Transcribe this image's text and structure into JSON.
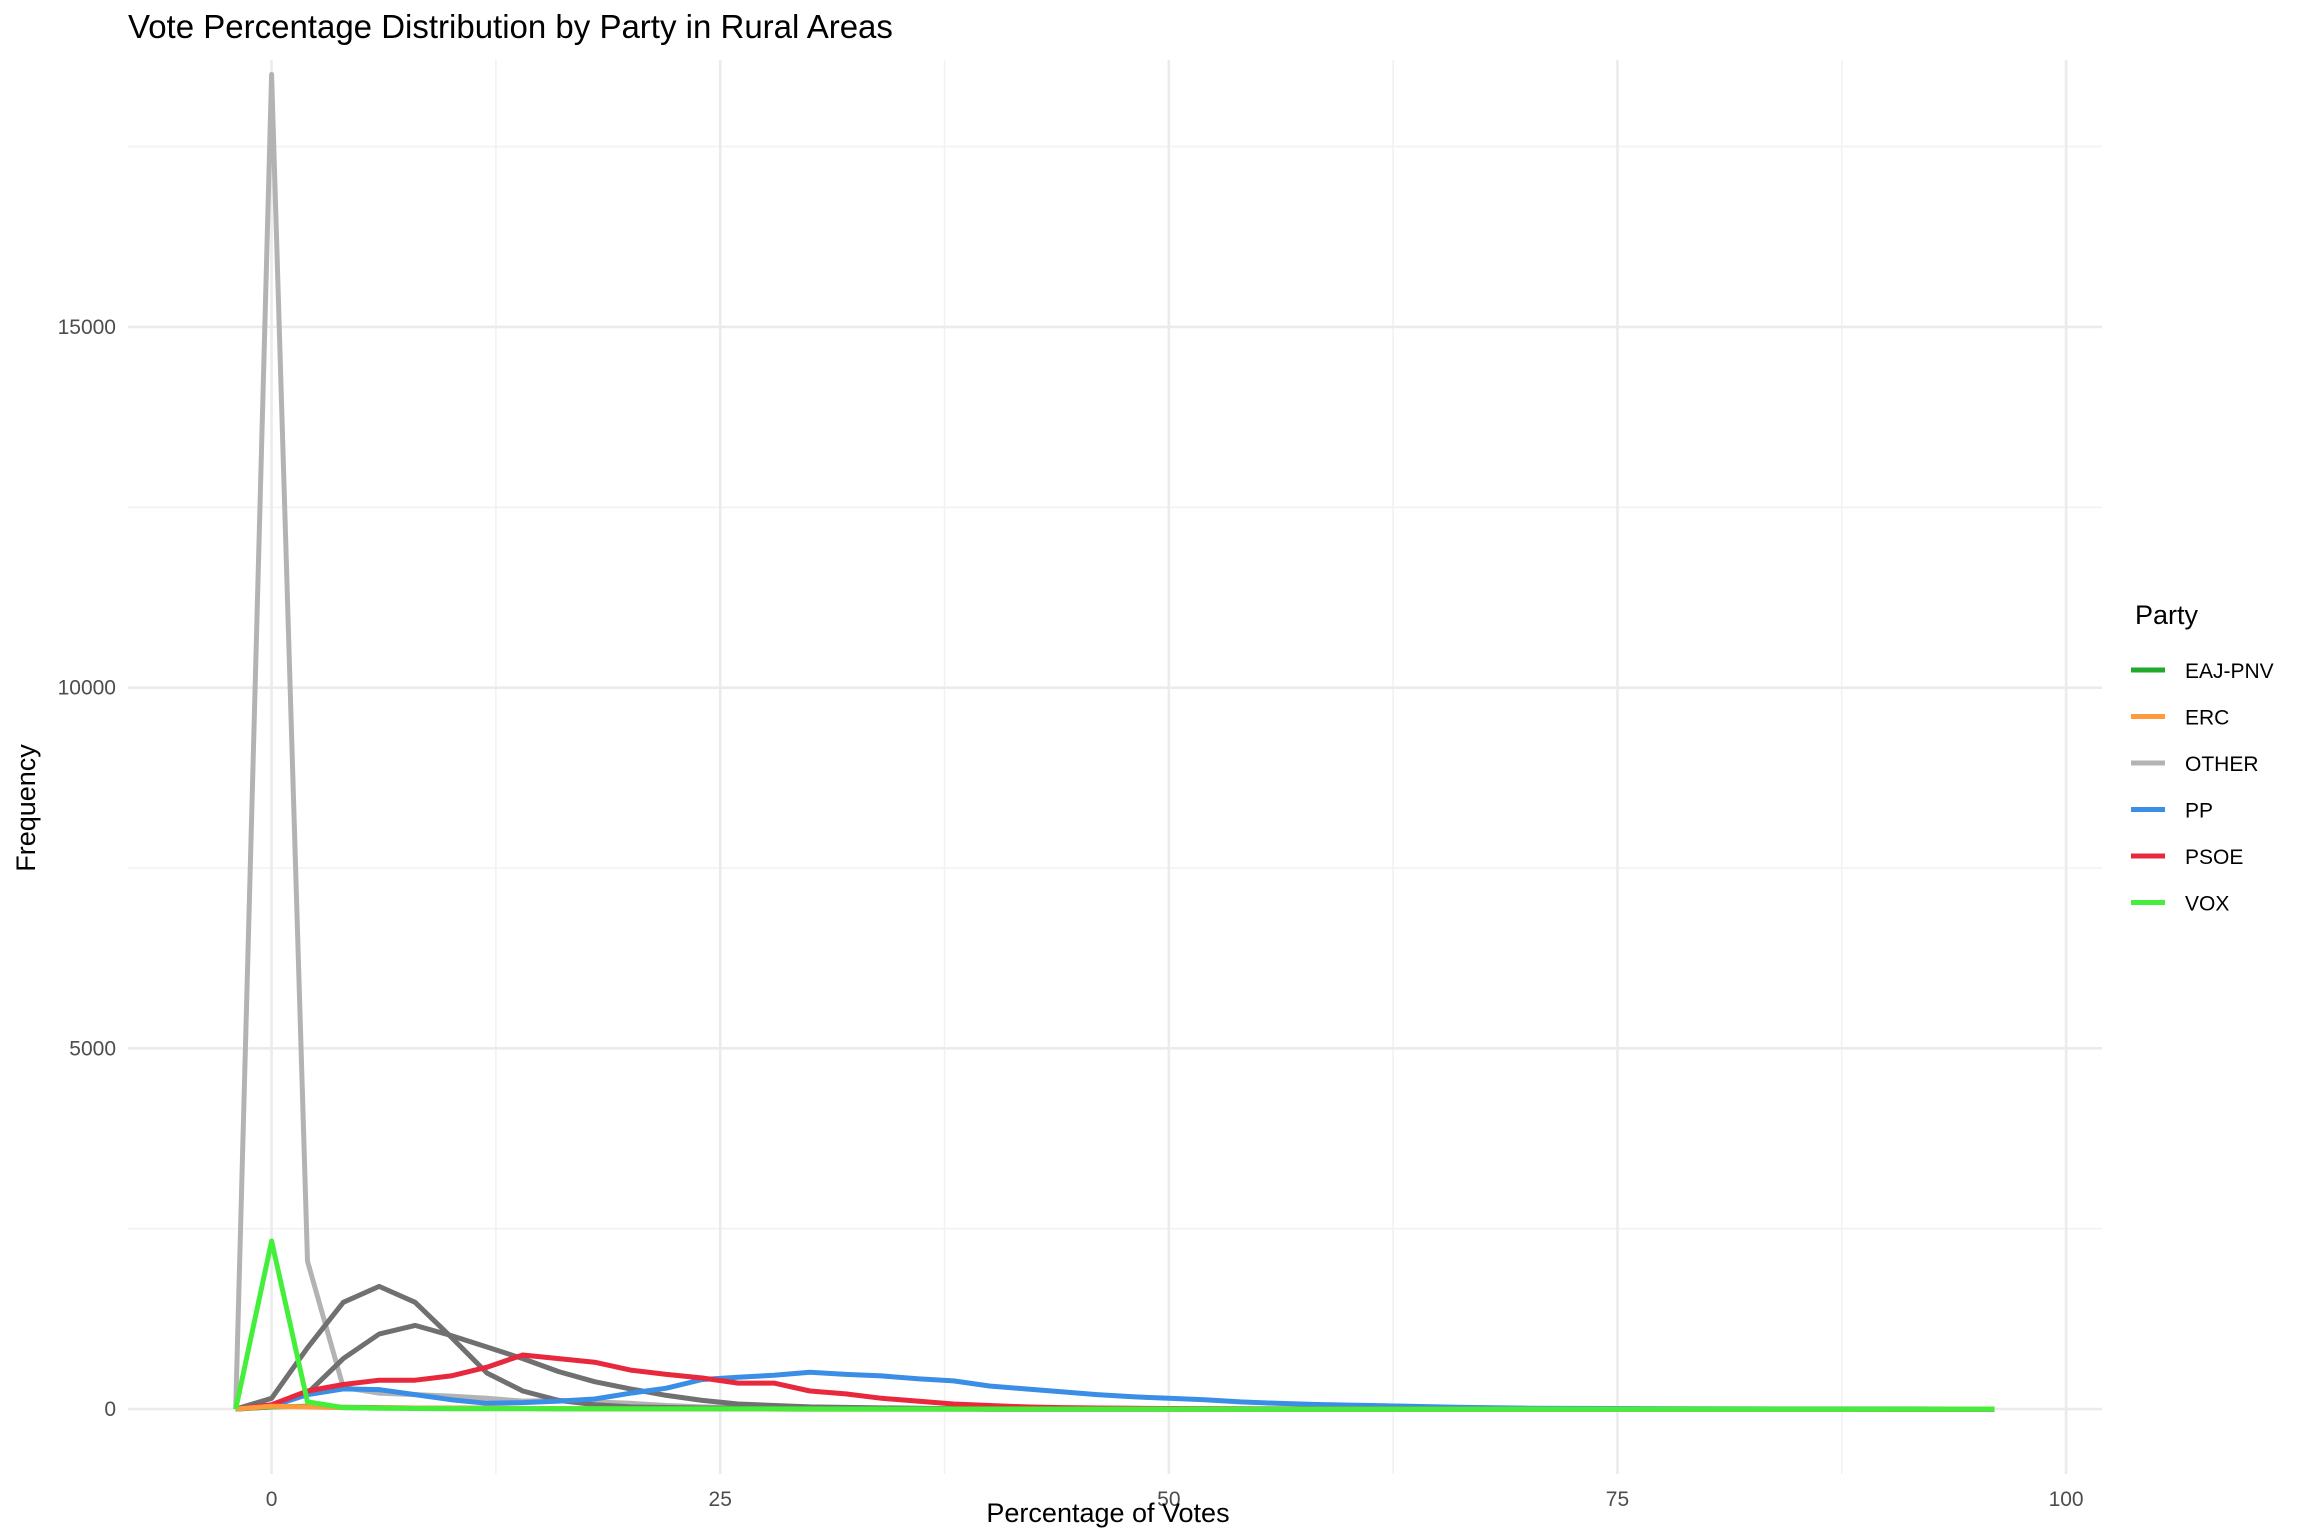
{
  "chart_data": {
    "type": "line",
    "title": "Vote Percentage Distribution by Party in Rural Areas",
    "xlabel": "Percentage of Votes",
    "ylabel": "Frequency",
    "xlim": [
      -8,
      102
    ],
    "ylim": [
      -900,
      18700
    ],
    "x_ticks": [
      0,
      25,
      50,
      75,
      100
    ],
    "x_tick_labels": [
      "0",
      "25",
      "50",
      "75",
      "100"
    ],
    "y_ticks": [
      0,
      5000,
      10000,
      15000
    ],
    "y_tick_labels": [
      "0",
      "5000",
      "10000",
      "15000"
    ],
    "x_minor_ticks": [
      12.5,
      37.5,
      62.5,
      87.5
    ],
    "y_minor_ticks": [
      2500,
      7500,
      12500,
      17500
    ],
    "grid": true,
    "legend": {
      "title": "Party",
      "position": "right"
    },
    "series": [
      {
        "name": "OTHER",
        "color": "#b3b3b3",
        "in_legend": true,
        "x": [
          -2,
          0,
          2,
          4,
          6,
          8,
          10,
          12,
          14,
          16,
          18,
          20,
          22,
          24,
          26,
          30,
          40,
          60,
          96
        ],
        "y": [
          0,
          18500,
          2050,
          300,
          220,
          200,
          180,
          150,
          110,
          120,
          100,
          80,
          50,
          30,
          20,
          10,
          5,
          0,
          0
        ]
      },
      {
        "name": "",
        "color": "#707070",
        "in_legend": false,
        "x": [
          -2,
          0,
          2,
          4,
          6,
          8,
          10,
          12,
          14,
          16,
          18,
          20,
          24,
          30,
          40,
          96
        ],
        "y": [
          0,
          150,
          850,
          1480,
          1700,
          1480,
          1000,
          500,
          250,
          120,
          60,
          30,
          15,
          5,
          0,
          0
        ]
      },
      {
        "name": "",
        "color": "#707070",
        "in_legend": false,
        "x": [
          -2,
          0,
          2,
          4,
          6,
          8,
          10,
          12,
          14,
          16,
          18,
          20,
          22,
          24,
          26,
          30,
          36,
          40,
          96
        ],
        "y": [
          0,
          30,
          220,
          700,
          1040,
          1160,
          1020,
          860,
          700,
          520,
          380,
          280,
          190,
          120,
          70,
          30,
          10,
          0,
          0
        ]
      },
      {
        "name": "PP",
        "color": "#3a8ee6",
        "in_legend": true,
        "x": [
          -2,
          0,
          2,
          4,
          6,
          8,
          10,
          12,
          14,
          16,
          18,
          20,
          22,
          24,
          26,
          28,
          30,
          32,
          34,
          36,
          38,
          40,
          42,
          44,
          46,
          48,
          50,
          52,
          54,
          56,
          58,
          60,
          62,
          64,
          66,
          68,
          70,
          75,
          80,
          85,
          90,
          96
        ],
        "y": [
          0,
          40,
          200,
          280,
          270,
          200,
          130,
          80,
          90,
          110,
          140,
          220,
          290,
          410,
          440,
          470,
          510,
          480,
          460,
          420,
          390,
          320,
          280,
          240,
          200,
          170,
          150,
          130,
          100,
          80,
          65,
          55,
          45,
          35,
          25,
          18,
          12,
          8,
          5,
          3,
          2,
          0
        ]
      },
      {
        "name": "PSOE",
        "color": "#e8283c",
        "in_legend": true,
        "x": [
          -2,
          0,
          2,
          4,
          6,
          8,
          10,
          12,
          14,
          16,
          18,
          20,
          22,
          24,
          26,
          28,
          30,
          32,
          34,
          36,
          38,
          40,
          42,
          44,
          46,
          48,
          50,
          55,
          60,
          70,
          96
        ],
        "y": [
          0,
          60,
          250,
          340,
          400,
          400,
          460,
          580,
          750,
          700,
          650,
          540,
          480,
          430,
          360,
          360,
          250,
          210,
          150,
          110,
          70,
          50,
          30,
          20,
          15,
          10,
          8,
          5,
          3,
          1,
          0
        ]
      },
      {
        "name": "EAJ-PNV",
        "color": "#22a82c",
        "in_legend": true,
        "x": [
          -2,
          0,
          2,
          4,
          8,
          12,
          16,
          20,
          30,
          96
        ],
        "y": [
          0,
          30,
          40,
          25,
          15,
          10,
          5,
          3,
          0,
          0
        ]
      },
      {
        "name": "ERC",
        "color": "#ff9a3c",
        "in_legend": true,
        "x": [
          -2,
          0,
          2,
          4,
          8,
          12,
          16,
          20,
          30,
          96
        ],
        "y": [
          0,
          40,
          30,
          20,
          15,
          10,
          6,
          3,
          0,
          0
        ]
      },
      {
        "name": "VOX",
        "color": "#44ef3c",
        "in_legend": true,
        "x": [
          -2,
          0,
          2,
          4,
          6,
          10,
          20,
          40,
          60,
          80,
          96
        ],
        "y": [
          0,
          2330,
          100,
          20,
          10,
          5,
          2,
          1,
          0,
          0,
          0
        ]
      }
    ],
    "legend_entries": [
      {
        "label": "EAJ-PNV",
        "color": "#22a82c"
      },
      {
        "label": "ERC",
        "color": "#ff9a3c"
      },
      {
        "label": "OTHER",
        "color": "#b3b3b3"
      },
      {
        "label": "PP",
        "color": "#3a8ee6"
      },
      {
        "label": "PSOE",
        "color": "#e8283c"
      },
      {
        "label": "VOX",
        "color": "#44ef3c"
      }
    ]
  }
}
